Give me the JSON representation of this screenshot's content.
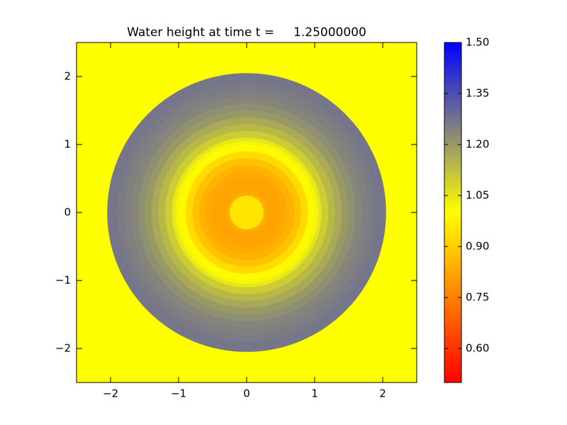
{
  "chart_data": {
    "type": "radial_heatmap",
    "title": "Water height at time t =     1.25000000",
    "xlim": [
      -2.5,
      2.5
    ],
    "ylim": [
      -2.5,
      2.5
    ],
    "xticks": [
      {
        "value": -2,
        "label": "−2"
      },
      {
        "value": -1,
        "label": "−1"
      },
      0,
      1,
      2
    ],
    "yticks": [
      {
        "value": -2,
        "label": "−2"
      },
      {
        "value": -1,
        "label": "−1"
      },
      0,
      1,
      2
    ],
    "center": [
      0,
      0
    ],
    "r": [
      0.25,
      0.3,
      0.4,
      0.5,
      0.6,
      0.7,
      0.8,
      0.9,
      1.0,
      1.05,
      1.1,
      1.2,
      1.3,
      1.4,
      1.5,
      1.6,
      1.7,
      1.8,
      1.9,
      2.0,
      2.05,
      2.5
    ],
    "values": [
      0.95,
      0.84,
      0.82,
      0.82,
      0.83,
      0.85,
      0.88,
      0.93,
      0.99,
      1.02,
      1.05,
      1.1,
      1.14,
      1.17,
      1.2,
      1.22,
      1.24,
      1.25,
      1.26,
      1.27,
      1.27,
      1.0
    ],
    "clim": [
      0.5,
      1.5
    ],
    "cticks": [
      {
        "value": 0.6,
        "label": "0.60"
      },
      {
        "value": 0.75,
        "label": "0.75"
      },
      {
        "value": 0.9,
        "label": "0.90"
      },
      {
        "value": 1.05,
        "label": "1.05"
      },
      {
        "value": 1.2,
        "label": "1.20"
      },
      {
        "value": 1.35,
        "label": "1.35"
      },
      {
        "value": 1.5,
        "label": "1.50"
      }
    ],
    "colormap": [
      {
        "value": 0.5,
        "color": "#ff0000"
      },
      {
        "value": 1.0,
        "color": "#ffff00"
      },
      {
        "value": 1.25,
        "color": "#808080"
      },
      {
        "value": 1.5,
        "color": "#0000ff"
      }
    ]
  }
}
